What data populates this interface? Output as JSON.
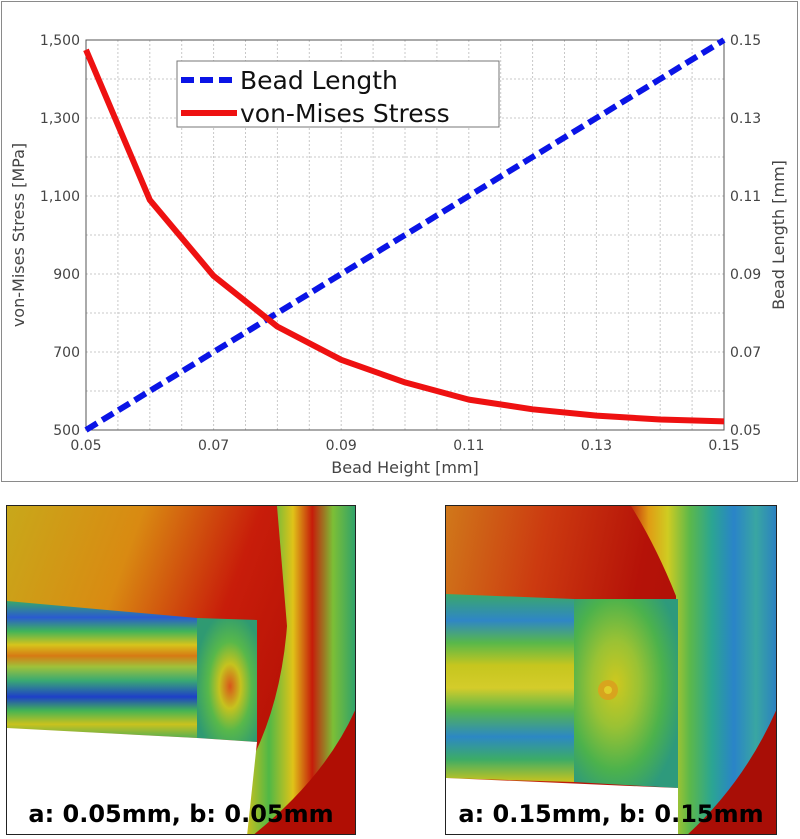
{
  "chart_data": {
    "type": "line",
    "xlabel": "Bead Height [mm]",
    "ylabel_left": "von-Mises Stress [MPa]",
    "ylabel_right": "Bead Length [mm]",
    "xlim": [
      0.05,
      0.15
    ],
    "ylim_left": [
      500,
      1500
    ],
    "ylim_right": [
      0.05,
      0.15
    ],
    "x_ticks": [
      "0.05",
      "0.07",
      "0.09",
      "0.11",
      "0.13",
      "0.15"
    ],
    "y_left_ticks": [
      "500",
      "700",
      "900",
      "1,100",
      "1,300",
      "1,500"
    ],
    "y_right_ticks": [
      "0.05",
      "0.07",
      "0.09",
      "0.11",
      "0.13",
      "0.15"
    ],
    "grid": true,
    "legend_position": "top-left",
    "x": [
      0.05,
      0.06,
      0.07,
      0.08,
      0.09,
      0.1,
      0.11,
      0.12,
      0.13,
      0.14,
      0.15
    ],
    "series": [
      {
        "name": "Bead Length",
        "axis": "right",
        "style": "dashed",
        "color": "#0a14e6",
        "values": [
          0.05,
          0.06,
          0.07,
          0.08,
          0.09,
          0.1,
          0.11,
          0.12,
          0.13,
          0.14,
          0.15
        ]
      },
      {
        "name": "von-Mises Stress",
        "axis": "left",
        "style": "solid",
        "color": "#ee1111",
        "values": [
          1475,
          1090,
          895,
          765,
          680,
          622,
          578,
          553,
          537,
          527,
          522
        ]
      }
    ]
  },
  "panels": [
    {
      "caption": "a: 0.05mm, b: 0.05mm"
    },
    {
      "caption": "a: 0.15mm, b: 0.15mm"
    }
  ]
}
